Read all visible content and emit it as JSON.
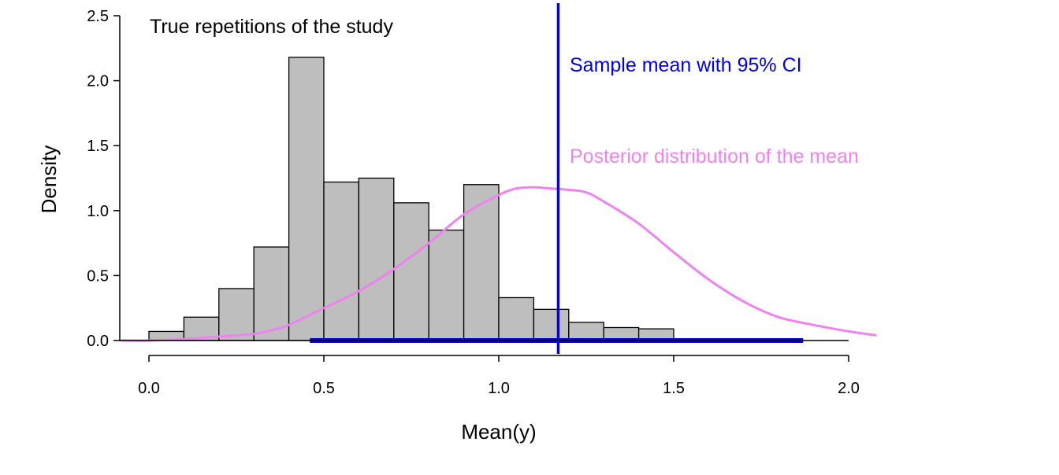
{
  "chart_data": {
    "type": "bar",
    "title": "",
    "xlabel": "Mean(y)",
    "ylabel": "Density",
    "xlim": [
      -0.08,
      2.1
    ],
    "ylim": [
      0.0,
      2.5
    ],
    "xticks": [
      0.0,
      0.5,
      1.0,
      1.5,
      2.0
    ],
    "xtick_labels": [
      "0.0",
      "0.5",
      "1.0",
      "1.5",
      "2.0"
    ],
    "yticks": [
      0.0,
      0.5,
      1.0,
      1.5,
      2.0,
      2.5
    ],
    "ytick_labels": [
      "0.0",
      "0.5",
      "1.0",
      "1.5",
      "2.0",
      "2.5"
    ],
    "grid": false,
    "histogram": {
      "name": "True repetitions of the study",
      "bin_width": 0.1,
      "bin_starts": [
        0.0,
        0.1,
        0.2,
        0.3,
        0.4,
        0.5,
        0.6,
        0.7,
        0.8,
        0.9,
        1.0,
        1.1,
        1.2,
        1.3,
        1.4
      ],
      "densities": [
        0.07,
        0.18,
        0.4,
        0.72,
        2.18,
        1.22,
        1.25,
        1.06,
        0.85,
        1.2,
        0.33,
        0.24,
        0.14,
        0.1,
        0.09
      ],
      "fill_color": "#bebebe",
      "edge_color": "#000000"
    },
    "posterior_curve": {
      "name": "Posterior distribution of the mean",
      "color": "#ee82ee",
      "x": [
        -0.08,
        0.0,
        0.1,
        0.2,
        0.3,
        0.35,
        0.4,
        0.5,
        0.6,
        0.7,
        0.8,
        0.9,
        1.0,
        1.05,
        1.1,
        1.15,
        1.2,
        1.25,
        1.3,
        1.4,
        1.5,
        1.6,
        1.7,
        1.8,
        1.9,
        2.0,
        2.08
      ],
      "y": [
        0.0,
        0.0,
        0.01,
        0.03,
        0.05,
        0.08,
        0.12,
        0.25,
        0.38,
        0.55,
        0.75,
        0.97,
        1.12,
        1.17,
        1.18,
        1.17,
        1.16,
        1.14,
        1.07,
        0.9,
        0.68,
        0.47,
        0.3,
        0.18,
        0.12,
        0.07,
        0.04
      ]
    },
    "sample_mean": {
      "name": "Sample mean with 95% CI",
      "color": "#0000ee",
      "mean": 1.17,
      "ci": [
        0.46,
        1.87
      ]
    },
    "annotations": {
      "histogram_label": "True repetitions of the study",
      "sample_mean_label": "Sample mean with 95% CI",
      "posterior_label": "Posterior distribution of the mean"
    }
  }
}
